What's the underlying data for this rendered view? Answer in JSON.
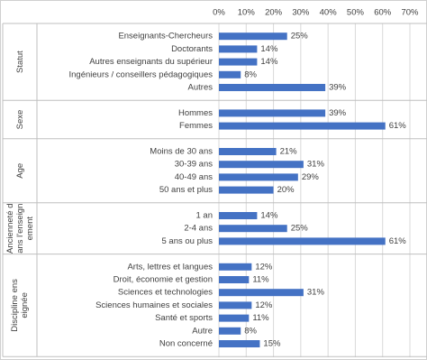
{
  "chart_data": {
    "type": "bar",
    "orientation": "horizontal",
    "color": "#4472c4",
    "grid": true,
    "xlim": [
      0,
      70
    ],
    "xticks": [
      {
        "value": 0,
        "label": "0%"
      },
      {
        "value": 10,
        "label": "10%"
      },
      {
        "value": 20,
        "label": "20%"
      },
      {
        "value": 30,
        "label": "30%"
      },
      {
        "value": 40,
        "label": "40%"
      },
      {
        "value": 50,
        "label": "50%"
      },
      {
        "value": 60,
        "label": "60%"
      },
      {
        "value": 70,
        "label": "70%"
      }
    ],
    "groups": [
      {
        "name": "Statut",
        "categories": [
          "Enseignants-Chercheurs",
          "Doctorants",
          "Autres enseignants du supérieur",
          "Ingénieurs / conseillers pédagogiques",
          "Autres"
        ],
        "values": [
          25,
          14,
          14,
          8,
          39
        ],
        "value_labels": [
          "25%",
          "14%",
          "14%",
          "8%",
          "39%"
        ]
      },
      {
        "name": "Sexe",
        "categories": [
          "Hommes",
          "Femmes"
        ],
        "values": [
          39,
          61
        ],
        "value_labels": [
          "39%",
          "61%"
        ]
      },
      {
        "name": "Age",
        "categories": [
          "Moins de 30 ans",
          "30-39 ans",
          "40-49 ans",
          "50 ans et plus"
        ],
        "values": [
          21,
          31,
          29,
          20
        ],
        "value_labels": [
          "21%",
          "31%",
          "29%",
          "20%"
        ]
      },
      {
        "name": "Ancienneté dans l'enseignement",
        "categories": [
          "1 an",
          "2-4 ans",
          "5 ans ou plus"
        ],
        "values": [
          14,
          25,
          61
        ],
        "value_labels": [
          "14%",
          "25%",
          "61%"
        ]
      },
      {
        "name": "Discipline enseignée",
        "categories": [
          "Arts, lettres et langues",
          "Droit, économie et gestion",
          "Sciences et technologies",
          "Sciences humaines et sociales",
          "Santé et sports",
          "Autre",
          "Non concerné"
        ],
        "values": [
          12,
          11,
          31,
          12,
          11,
          8,
          15
        ],
        "value_labels": [
          "12%",
          "11%",
          "31%",
          "12%",
          "11%",
          "8%",
          "15%"
        ]
      }
    ]
  }
}
